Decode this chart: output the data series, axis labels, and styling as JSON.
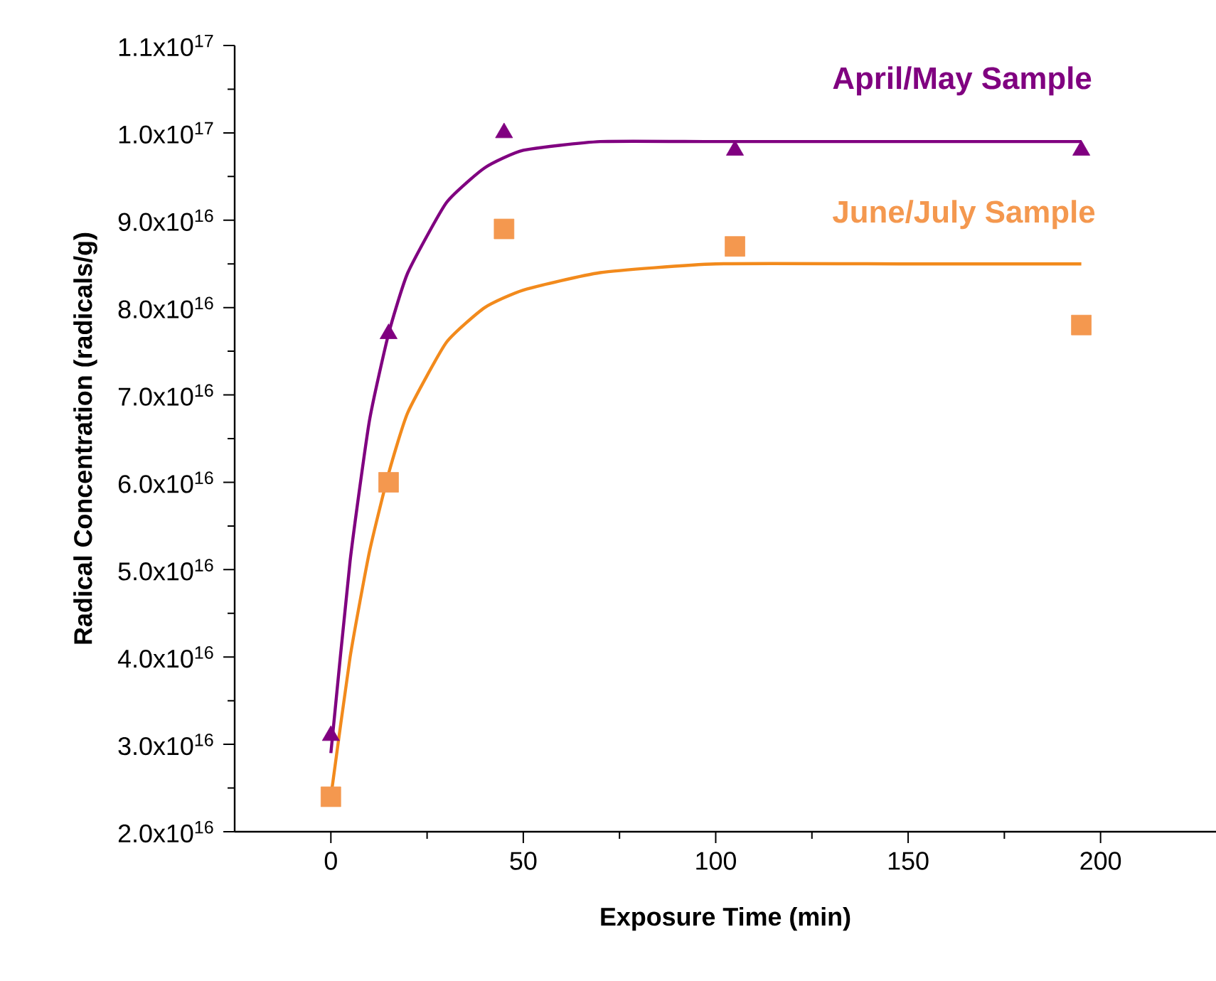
{
  "chart_data": {
    "type": "scatter",
    "xlabel": "Exposure Time (min)",
    "ylabel": "Radical Concentration (radicals/g)",
    "xlim": [
      -25,
      230
    ],
    "xticks": [
      0,
      50,
      100,
      150,
      200
    ],
    "ylim": [
      2e+16,
      1.1e+17
    ],
    "yticks": [
      {
        "value": 2e+16,
        "label": "2.0x10$^{16}$"
      },
      {
        "value": 3e+16,
        "label": "3.0x10$^{16}$"
      },
      {
        "value": 4e+16,
        "label": "4.0x10$^{16}$"
      },
      {
        "value": 5e+16,
        "label": "5.0x10$^{16}$"
      },
      {
        "value": 6e+16,
        "label": "6.0x10$^{16}$"
      },
      {
        "value": 7e+16,
        "label": "7.0x10$^{16}$"
      },
      {
        "value": 8e+16,
        "label": "8.0x10$^{16}$"
      },
      {
        "value": 9e+16,
        "label": "9.0x10$^{16}$"
      },
      {
        "value": 1e+17,
        "label": "1.0x10$^{17}$"
      },
      {
        "value": 1.1e+17,
        "label": "1.1x10$^{17}$"
      }
    ],
    "grid": false,
    "legend": false,
    "series": [
      {
        "name": "April/May Sample",
        "type": "scatter",
        "marker": "triangle",
        "color": "#800080",
        "x": [
          0,
          15,
          45,
          105,
          195
        ],
        "values": [
          3.1e+16,
          7.7e+16,
          1e+17,
          9.8e+16,
          9.8e+16
        ]
      },
      {
        "name": "June/July Sample",
        "type": "scatter",
        "marker": "square",
        "color": "#f4984f",
        "x": [
          0,
          15,
          45,
          105,
          195
        ],
        "values": [
          2.4e+16,
          6e+16,
          8.9e+16,
          8.7e+16,
          7.8e+16
        ]
      },
      {
        "type": "line",
        "marker": "none",
        "color": "#800080",
        "x": [
          0,
          5,
          10,
          15,
          20,
          30,
          40,
          50,
          70,
          100,
          150,
          195
        ],
        "values": [
          2.9e+16,
          5.1e+16,
          6.7e+16,
          7.7e+16,
          8.4e+16,
          9.2e+16,
          9.6e+16,
          9.8e+16,
          9.9e+16,
          9.9e+16,
          9.9e+16,
          9.9e+16
        ]
      },
      {
        "type": "line",
        "marker": "none",
        "color": "#f28a1c",
        "x": [
          0,
          5,
          10,
          15,
          20,
          30,
          40,
          50,
          70,
          100,
          150,
          195
        ],
        "values": [
          2.4e+16,
          4e+16,
          5.2e+16,
          6.1e+16,
          6.8e+16,
          7.6e+16,
          8e+16,
          8.2e+16,
          8.4e+16,
          8.5e+16,
          8.5e+16,
          8.5e+16
        ]
      }
    ]
  }
}
